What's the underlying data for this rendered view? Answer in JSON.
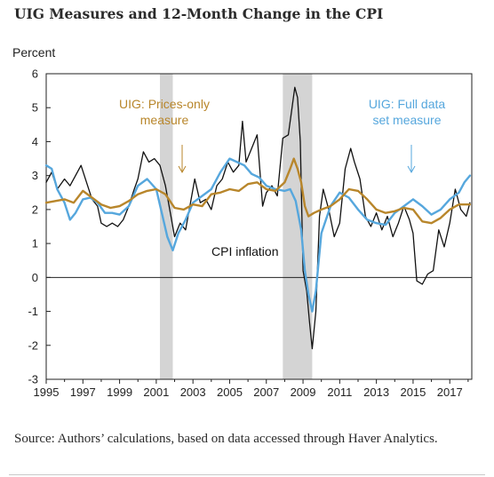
{
  "title": "UIG Measures and 12-Month Change in the CPI",
  "source": "Source: Authors’ calculations, based on data accessed through Haver Analytics.",
  "colors": {
    "cpi": "#111111",
    "prices_only": "#b8862b",
    "full_data": "#56a7dd",
    "recession": "#d4d4d4"
  },
  "chart_data": {
    "type": "line",
    "ylabel": "Percent",
    "xlim": [
      1995,
      2018.2
    ],
    "ylim": [
      -3,
      6
    ],
    "x_ticks": [
      "1995",
      "1997",
      "1999",
      "2001",
      "2003",
      "2005",
      "2007",
      "2009",
      "2011",
      "2013",
      "2015",
      "2017"
    ],
    "y_ticks": [
      "-3",
      "-2",
      "-1",
      "0",
      "1",
      "2",
      "3",
      "4",
      "5",
      "6"
    ],
    "recessions": [
      [
        2001.2,
        2001.9
      ],
      [
        2007.9,
        2009.5
      ]
    ],
    "annotations": [
      {
        "label": "UIG: Prices-only\nmeasure",
        "series": "prices_only"
      },
      {
        "label": "UIG: Full data\nset measure",
        "series": "full_data"
      },
      {
        "label": "CPI inflation",
        "series": "cpi"
      }
    ],
    "series": [
      {
        "key": "cpi",
        "name": "CPI inflation",
        "x": [
          1995.0,
          1995.3,
          1995.6,
          1996.0,
          1996.3,
          1996.6,
          1996.9,
          1997.2,
          1997.5,
          1997.8,
          1998.0,
          1998.3,
          1998.6,
          1998.9,
          1999.2,
          1999.5,
          1999.8,
          2000.0,
          2000.3,
          2000.6,
          2000.9,
          2001.2,
          2001.5,
          2001.8,
          2002.0,
          2002.3,
          2002.6,
          2002.9,
          2003.1,
          2003.4,
          2003.7,
          2004.0,
          2004.3,
          2004.6,
          2004.9,
          2005.2,
          2005.5,
          2005.7,
          2005.9,
          2006.2,
          2006.5,
          2006.8,
          2007.0,
          2007.3,
          2007.6,
          2007.9,
          2008.2,
          2008.4,
          2008.55,
          2008.7,
          2008.85,
          2009.0,
          2009.2,
          2009.35,
          2009.5,
          2009.7,
          2009.9,
          2010.1,
          2010.4,
          2010.7,
          2011.0,
          2011.3,
          2011.6,
          2011.8,
          2012.1,
          2012.4,
          2012.7,
          2013.0,
          2013.3,
          2013.6,
          2013.9,
          2014.2,
          2014.5,
          2014.8,
          2015.0,
          2015.2,
          2015.5,
          2015.8,
          2016.1,
          2016.4,
          2016.7,
          2017.0,
          2017.3,
          2017.6,
          2017.9,
          2018.1
        ],
        "y": [
          2.8,
          3.1,
          2.6,
          2.9,
          2.7,
          3.0,
          3.3,
          2.8,
          2.3,
          2.1,
          1.6,
          1.5,
          1.6,
          1.5,
          1.7,
          2.1,
          2.6,
          2.9,
          3.7,
          3.4,
          3.5,
          3.3,
          2.7,
          1.8,
          1.2,
          1.6,
          1.4,
          2.3,
          2.9,
          2.2,
          2.3,
          2.0,
          2.7,
          2.9,
          3.4,
          3.1,
          3.3,
          4.6,
          3.4,
          3.8,
          4.2,
          2.1,
          2.5,
          2.7,
          2.4,
          4.1,
          4.2,
          5.0,
          5.6,
          5.3,
          4.0,
          0.2,
          -0.4,
          -1.3,
          -2.1,
          -1.0,
          1.8,
          2.6,
          2.0,
          1.2,
          1.6,
          3.2,
          3.8,
          3.4,
          2.9,
          1.8,
          1.5,
          1.9,
          1.4,
          1.8,
          1.2,
          1.6,
          2.1,
          1.7,
          1.3,
          -0.1,
          -0.2,
          0.1,
          0.2,
          1.4,
          0.9,
          1.6,
          2.6,
          2.0,
          1.8,
          2.2
        ]
      },
      {
        "key": "prices_only",
        "name": "UIG: Prices-only measure",
        "x": [
          1995.0,
          1995.5,
          1996.0,
          1996.5,
          1997.0,
          1997.5,
          1998.0,
          1998.5,
          1999.0,
          1999.5,
          2000.0,
          2000.5,
          2001.0,
          2001.5,
          2002.0,
          2002.5,
          2003.0,
          2003.5,
          2004.0,
          2004.5,
          2005.0,
          2005.5,
          2006.0,
          2006.5,
          2007.0,
          2007.5,
          2008.0,
          2008.3,
          2008.5,
          2008.7,
          2008.9,
          2009.1,
          2009.3,
          2009.6,
          2010.0,
          2010.5,
          2011.0,
          2011.5,
          2012.0,
          2012.5,
          2013.0,
          2013.5,
          2014.0,
          2014.5,
          2015.0,
          2015.5,
          2016.0,
          2016.5,
          2017.0,
          2017.5,
          2018.1
        ],
        "y": [
          2.2,
          2.25,
          2.3,
          2.2,
          2.55,
          2.35,
          2.15,
          2.05,
          2.1,
          2.25,
          2.45,
          2.55,
          2.6,
          2.45,
          2.05,
          2.0,
          2.15,
          2.1,
          2.45,
          2.5,
          2.6,
          2.55,
          2.75,
          2.8,
          2.6,
          2.55,
          2.8,
          3.2,
          3.5,
          3.2,
          2.8,
          2.1,
          1.8,
          1.9,
          2.0,
          2.1,
          2.3,
          2.6,
          2.55,
          2.3,
          2.0,
          1.9,
          1.95,
          2.05,
          2.0,
          1.65,
          1.6,
          1.75,
          2.0,
          2.15,
          2.15
        ]
      },
      {
        "key": "full_data",
        "name": "UIG: Full data set measure",
        "x": [
          1995.0,
          1995.3,
          1995.6,
          1996.0,
          1996.3,
          1996.6,
          1997.0,
          1997.4,
          1997.8,
          1998.2,
          1998.6,
          1999.0,
          1999.5,
          2000.0,
          2000.5,
          2001.0,
          2001.3,
          2001.6,
          2001.9,
          2002.2,
          2002.6,
          2003.0,
          2003.5,
          2004.0,
          2004.5,
          2005.0,
          2005.4,
          2005.8,
          2006.2,
          2006.6,
          2007.0,
          2007.5,
          2008.0,
          2008.3,
          2008.6,
          2008.9,
          2009.1,
          2009.3,
          2009.5,
          2009.7,
          2010.0,
          2010.5,
          2011.0,
          2011.5,
          2012.0,
          2012.5,
          2013.0,
          2013.5,
          2014.0,
          2014.5,
          2015.0,
          2015.5,
          2016.0,
          2016.5,
          2017.0,
          2017.5,
          2017.8,
          2018.1
        ],
        "y": [
          3.3,
          3.2,
          2.6,
          2.2,
          1.7,
          1.9,
          2.3,
          2.35,
          2.2,
          1.9,
          1.9,
          1.85,
          2.1,
          2.7,
          2.9,
          2.6,
          1.9,
          1.2,
          0.8,
          1.3,
          1.7,
          2.2,
          2.4,
          2.6,
          3.1,
          3.5,
          3.4,
          3.3,
          3.05,
          2.95,
          2.7,
          2.6,
          2.55,
          2.6,
          2.25,
          1.4,
          0.2,
          -0.5,
          -1.0,
          -0.4,
          1.3,
          2.1,
          2.5,
          2.35,
          2.0,
          1.7,
          1.6,
          1.55,
          1.9,
          2.1,
          2.3,
          2.1,
          1.85,
          2.0,
          2.3,
          2.5,
          2.8,
          3.0
        ]
      }
    ]
  }
}
